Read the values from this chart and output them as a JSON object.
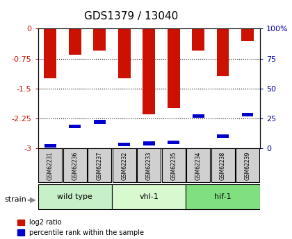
{
  "title": "GDS1379 / 13040",
  "samples": [
    "GSM62231",
    "GSM62236",
    "GSM62237",
    "GSM62232",
    "GSM62233",
    "GSM62235",
    "GSM62234",
    "GSM62238",
    "GSM62239"
  ],
  "log2_ratios": [
    -1.25,
    -0.65,
    -0.55,
    -1.25,
    -2.15,
    -2.0,
    -0.55,
    -1.2,
    -0.3
  ],
  "percentile_ranks": [
    2,
    18,
    22,
    3,
    4,
    5,
    27,
    10,
    28
  ],
  "groups": [
    {
      "label": "wild type",
      "indices": [
        0,
        1,
        2
      ],
      "color": "#c8f0c8"
    },
    {
      "label": "vhl-1",
      "indices": [
        3,
        4,
        5
      ],
      "color": "#d8f8d0"
    },
    {
      "label": "hif-1",
      "indices": [
        6,
        7,
        8
      ],
      "color": "#80e080"
    }
  ],
  "ylim": [
    -3,
    0
  ],
  "yticks": [
    0,
    -0.75,
    -1.5,
    -2.25,
    -3
  ],
  "y2ticks": [
    100,
    75,
    50,
    25,
    0
  ],
  "y2tick_labels": [
    "100%",
    "75",
    "50",
    "25",
    "0"
  ],
  "bar_color": "#cc1100",
  "percentile_color": "#0000cc",
  "y_label_color": "#cc1100",
  "y2_label_color": "#0000aa",
  "sample_box_color": "#d0d0d0",
  "legend_red_label": "log2 ratio",
  "legend_blue_label": "percentile rank within the sample",
  "strain_label": "strain"
}
